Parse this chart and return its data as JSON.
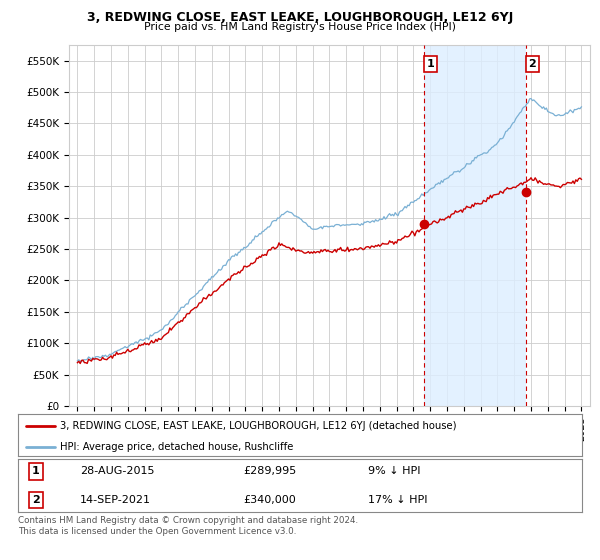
{
  "title": "3, REDWING CLOSE, EAST LEAKE, LOUGHBOROUGH, LE12 6YJ",
  "subtitle": "Price paid vs. HM Land Registry's House Price Index (HPI)",
  "ylabel_ticks": [
    "£0",
    "£50K",
    "£100K",
    "£150K",
    "£200K",
    "£250K",
    "£300K",
    "£350K",
    "£400K",
    "£450K",
    "£500K",
    "£550K"
  ],
  "ytick_vals": [
    0,
    50000,
    100000,
    150000,
    200000,
    250000,
    300000,
    350000,
    400000,
    450000,
    500000,
    550000
  ],
  "ylim": [
    0,
    575000
  ],
  "sale1_x": 2015.65,
  "sale1_y": 289995,
  "sale1_label": "1",
  "sale2_x": 2021.7,
  "sale2_y": 340000,
  "sale2_label": "2",
  "vline1_x": 2015.65,
  "vline2_x": 2021.7,
  "red_line_color": "#cc0000",
  "blue_line_color": "#7ab0d4",
  "shade_color": "#ddeeff",
  "vline_color": "#cc0000",
  "grid_color": "#cccccc",
  "background_color": "#ffffff",
  "legend_entry1": "3, REDWING CLOSE, EAST LEAKE, LOUGHBOROUGH, LE12 6YJ (detached house)",
  "legend_entry2": "HPI: Average price, detached house, Rushcliffe",
  "annotation1_date": "28-AUG-2015",
  "annotation1_price": "£289,995",
  "annotation1_hpi": "9% ↓ HPI",
  "annotation2_date": "14-SEP-2021",
  "annotation2_price": "£340,000",
  "annotation2_hpi": "17% ↓ HPI",
  "footer": "Contains HM Land Registry data © Crown copyright and database right 2024.\nThis data is licensed under the Open Government Licence v3.0.",
  "xmin": 1994.5,
  "xmax": 2025.5
}
